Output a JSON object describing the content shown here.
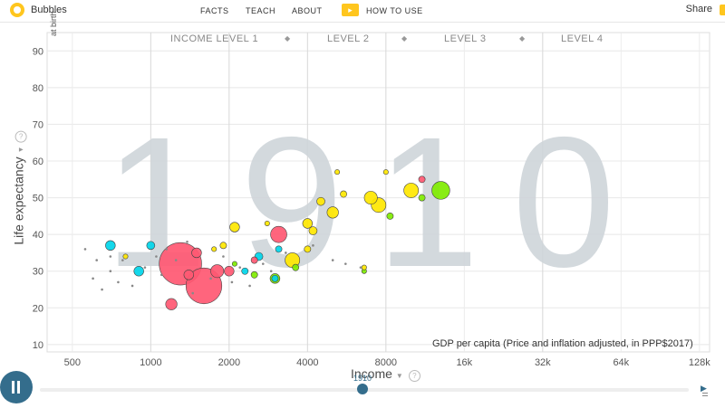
{
  "app": {
    "name": "Bubbles",
    "share": "Share"
  },
  "nav": {
    "facts": "FACTS",
    "teach": "TEACH",
    "about": "ABOUT",
    "howto": "HOW TO USE"
  },
  "colors": {
    "brand": "#ffc61e",
    "accent": "#346d8c",
    "africa": "#00d5e9",
    "asia": "#ff5872",
    "americas": "#7feb00",
    "europe": "#ffe700"
  },
  "chart": {
    "year": "1910",
    "ylabel": "Life expectancy",
    "ylabel_sub": "at birth",
    "xlabel": "Income",
    "x_caption": "GDP per capita (Price and inflation adjusted, in PPP$2017)",
    "levels": [
      "INCOME LEVEL 1",
      "LEVEL 2",
      "LEVEL 3",
      "LEVEL 4"
    ],
    "yticks": [
      "90",
      "80",
      "70",
      "60",
      "50",
      "40",
      "30",
      "20",
      "10"
    ],
    "xticks": [
      "500",
      "1000",
      "2000",
      "4000",
      "8000",
      "16k",
      "32k",
      "64k",
      "128k"
    ],
    "help": "?"
  },
  "timeline": {
    "year": "1910",
    "end_icon": "▶"
  },
  "chart_data": {
    "type": "scatter",
    "title": "",
    "xlabel": "Income",
    "ylabel": "Life expectancy",
    "xscale": "log",
    "xlim": [
      400,
      140000
    ],
    "ylim": [
      8,
      95
    ],
    "grid": true,
    "points": [
      {
        "x": 1300,
        "y": 32,
        "r": 1.3,
        "c": "asia"
      },
      {
        "x": 1600,
        "y": 26,
        "r": 1.1,
        "c": "asia"
      },
      {
        "x": 3100,
        "y": 40,
        "r": 0.5,
        "c": "asia"
      },
      {
        "x": 1200,
        "y": 21,
        "r": 0.35,
        "c": "asia"
      },
      {
        "x": 1800,
        "y": 30,
        "r": 0.4,
        "c": "asia"
      },
      {
        "x": 2000,
        "y": 30,
        "r": 0.3,
        "c": "asia"
      },
      {
        "x": 1500,
        "y": 35,
        "r": 0.3,
        "c": "asia"
      },
      {
        "x": 1400,
        "y": 29,
        "r": 0.3,
        "c": "asia"
      },
      {
        "x": 2500,
        "y": 33,
        "r": 0.2,
        "c": "asia"
      },
      {
        "x": 11000,
        "y": 55,
        "r": 0.2,
        "c": "asia"
      },
      {
        "x": 900,
        "y": 30,
        "r": 0.3,
        "c": "africa"
      },
      {
        "x": 700,
        "y": 37,
        "r": 0.3,
        "c": "africa"
      },
      {
        "x": 1000,
        "y": 37,
        "r": 0.25,
        "c": "africa"
      },
      {
        "x": 2600,
        "y": 34,
        "r": 0.25,
        "c": "africa"
      },
      {
        "x": 2300,
        "y": 30,
        "r": 0.2,
        "c": "africa"
      },
      {
        "x": 3000,
        "y": 28,
        "r": 0.2,
        "c": "africa"
      },
      {
        "x": 3100,
        "y": 36,
        "r": 0.2,
        "c": "africa"
      },
      {
        "x": 13000,
        "y": 52,
        "r": 0.55,
        "c": "americas"
      },
      {
        "x": 3000,
        "y": 28,
        "r": 0.3,
        "c": "americas"
      },
      {
        "x": 11000,
        "y": 50,
        "r": 0.2,
        "c": "americas"
      },
      {
        "x": 8300,
        "y": 45,
        "r": 0.2,
        "c": "americas"
      },
      {
        "x": 3600,
        "y": 31,
        "r": 0.2,
        "c": "americas"
      },
      {
        "x": 2500,
        "y": 29,
        "r": 0.2,
        "c": "americas"
      },
      {
        "x": 6600,
        "y": 30,
        "r": 0.15,
        "c": "americas"
      },
      {
        "x": 2100,
        "y": 32,
        "r": 0.15,
        "c": "americas"
      },
      {
        "x": 10000,
        "y": 52,
        "r": 0.45,
        "c": "europe"
      },
      {
        "x": 7500,
        "y": 48,
        "r": 0.45,
        "c": "europe"
      },
      {
        "x": 7000,
        "y": 50,
        "r": 0.4,
        "c": "europe"
      },
      {
        "x": 3500,
        "y": 33,
        "r": 0.45,
        "c": "europe"
      },
      {
        "x": 5000,
        "y": 46,
        "r": 0.35,
        "c": "europe"
      },
      {
        "x": 2100,
        "y": 42,
        "r": 0.3,
        "c": "europe"
      },
      {
        "x": 4000,
        "y": 43,
        "r": 0.3,
        "c": "europe"
      },
      {
        "x": 4200,
        "y": 41,
        "r": 0.25,
        "c": "europe"
      },
      {
        "x": 4500,
        "y": 49,
        "r": 0.25,
        "c": "europe"
      },
      {
        "x": 1900,
        "y": 37,
        "r": 0.2,
        "c": "europe"
      },
      {
        "x": 5500,
        "y": 51,
        "r": 0.2,
        "c": "europe"
      },
      {
        "x": 5200,
        "y": 57,
        "r": 0.15,
        "c": "europe"
      },
      {
        "x": 8000,
        "y": 57,
        "r": 0.15,
        "c": "europe"
      },
      {
        "x": 6600,
        "y": 31,
        "r": 0.15,
        "c": "europe"
      },
      {
        "x": 800,
        "y": 34,
        "r": 0.15,
        "c": "europe"
      },
      {
        "x": 2800,
        "y": 43,
        "r": 0.15,
        "c": "europe"
      },
      {
        "x": 1750,
        "y": 36,
        "r": 0.15,
        "c": "europe"
      },
      {
        "x": 4000,
        "y": 36,
        "r": 0.2,
        "c": "europe"
      }
    ]
  }
}
